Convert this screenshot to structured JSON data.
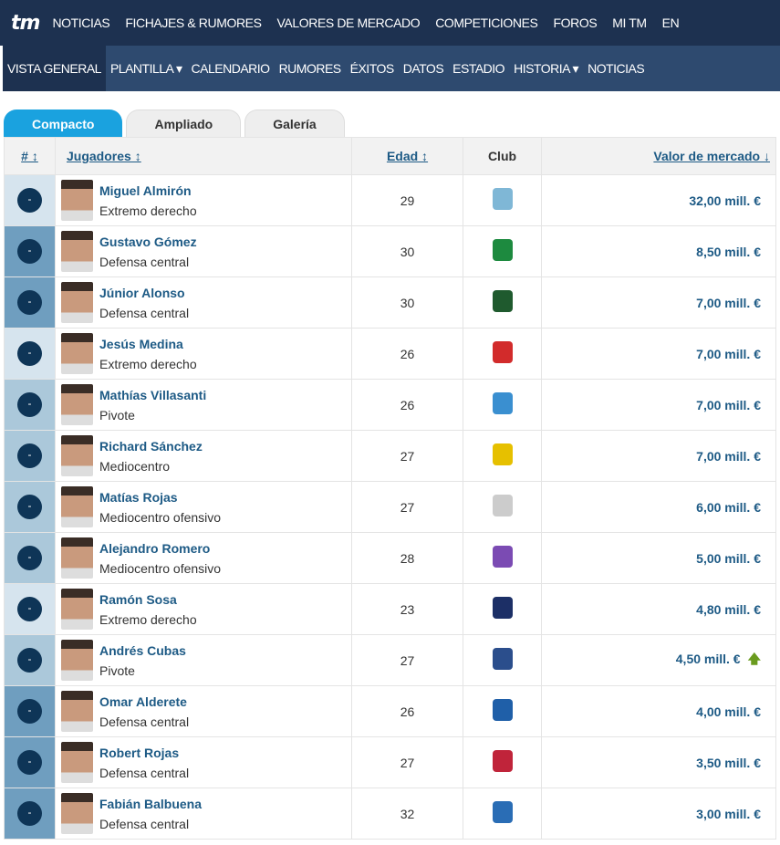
{
  "topnav": {
    "logo": "tm",
    "items": [
      "NOTICIAS",
      "FICHAJES & RUMORES",
      "VALORES DE MERCADO",
      "COMPETICIONES",
      "FOROS",
      "MI TM",
      "EN"
    ]
  },
  "subnav": {
    "items": [
      {
        "label": "VISTA GENERAL",
        "active": true
      },
      {
        "label": "PLANTILLA ▾"
      },
      {
        "label": "CALENDARIO"
      },
      {
        "label": "RUMORES"
      },
      {
        "label": "ÉXITOS"
      },
      {
        "label": "DATOS"
      },
      {
        "label": "ESTADIO"
      },
      {
        "label": "HISTORIA ▾"
      },
      {
        "label": "NOTICIAS"
      }
    ]
  },
  "tabs": [
    "Compacto",
    "Ampliado",
    "Galería"
  ],
  "columns": {
    "num": "# ↕",
    "players": "Jugadores ↕",
    "age": "Edad ↕",
    "club": "Club",
    "value": "Valor de mercado ↓"
  },
  "colors": {
    "attack": "#d6e4ee",
    "defense": "#6f9ebf",
    "midfield": "#abc8da",
    "accent": "#1aa2df",
    "trend_up": "#6a9b1e"
  },
  "rows": [
    {
      "num": "-",
      "name": "Miguel Almirón",
      "position": "Extremo derecho",
      "age": "29",
      "club_icon": "newcastle-badge",
      "value": "32,00 mill. €",
      "group": "attack",
      "badge": "#7fb7d6"
    },
    {
      "num": "-",
      "name": "Gustavo Gómez",
      "position": "Defensa central",
      "age": "30",
      "club_icon": "palmeiras-badge",
      "value": "8,50 mill. €",
      "group": "defense",
      "badge": "#1d8a3f"
    },
    {
      "num": "-",
      "name": "Júnior Alonso",
      "position": "Defensa central",
      "age": "30",
      "club_icon": "krasnodar-badge",
      "value": "7,00 mill. €",
      "group": "defense",
      "badge": "#1f5a2e"
    },
    {
      "num": "-",
      "name": "Jesús Medina",
      "position": "Extremo derecho",
      "age": "26",
      "club_icon": "spartak-badge",
      "value": "7,00 mill. €",
      "group": "attack",
      "badge": "#d22b2b"
    },
    {
      "num": "-",
      "name": "Mathías Villasanti",
      "position": "Pivote",
      "age": "26",
      "club_icon": "gremio-badge",
      "value": "7,00 mill. €",
      "group": "midfield",
      "badge": "#3a8fd0"
    },
    {
      "num": "-",
      "name": "Richard Sánchez",
      "position": "Mediocentro",
      "age": "27",
      "club_icon": "america-badge",
      "value": "7,00 mill. €",
      "group": "midfield",
      "badge": "#e6c000"
    },
    {
      "num": "-",
      "name": "Matías Rojas",
      "position": "Mediocentro ofensivo",
      "age": "27",
      "club_icon": "corinthians-badge",
      "value": "6,00 mill. €",
      "group": "midfield",
      "badge": "#cccccc"
    },
    {
      "num": "-",
      "name": "Alejandro Romero",
      "position": "Mediocentro ofensivo",
      "age": "28",
      "club_icon": "al-ain-badge",
      "value": "5,00 mill. €",
      "group": "midfield",
      "badge": "#7b4bb3"
    },
    {
      "num": "-",
      "name": "Ramón Sosa",
      "position": "Extremo derecho",
      "age": "23",
      "club_icon": "talleres-badge",
      "value": "4,80 mill. €",
      "group": "attack",
      "badge": "#1c2f66"
    },
    {
      "num": "-",
      "name": "Andrés Cubas",
      "position": "Pivote",
      "age": "27",
      "club_icon": "whitecaps-badge",
      "value": "4,50 mill. €",
      "trend": "up",
      "group": "midfield",
      "badge": "#2b4e8c"
    },
    {
      "num": "-",
      "name": "Omar Alderete",
      "position": "Defensa central",
      "age": "26",
      "club_icon": "getafe-badge",
      "value": "4,00 mill. €",
      "group": "defense",
      "badge": "#1f5fa8"
    },
    {
      "num": "-",
      "name": "Robert Rojas",
      "position": "Defensa central",
      "age": "27",
      "club_icon": "tigre-badge",
      "value": "3,50 mill. €",
      "group": "defense",
      "badge": "#c0243a"
    },
    {
      "num": "-",
      "name": "Fabián Balbuena",
      "position": "Defensa central",
      "age": "32",
      "club_icon": "dynamo-badge",
      "value": "3,00 mill. €",
      "group": "defense",
      "badge": "#2a6db5"
    }
  ]
}
